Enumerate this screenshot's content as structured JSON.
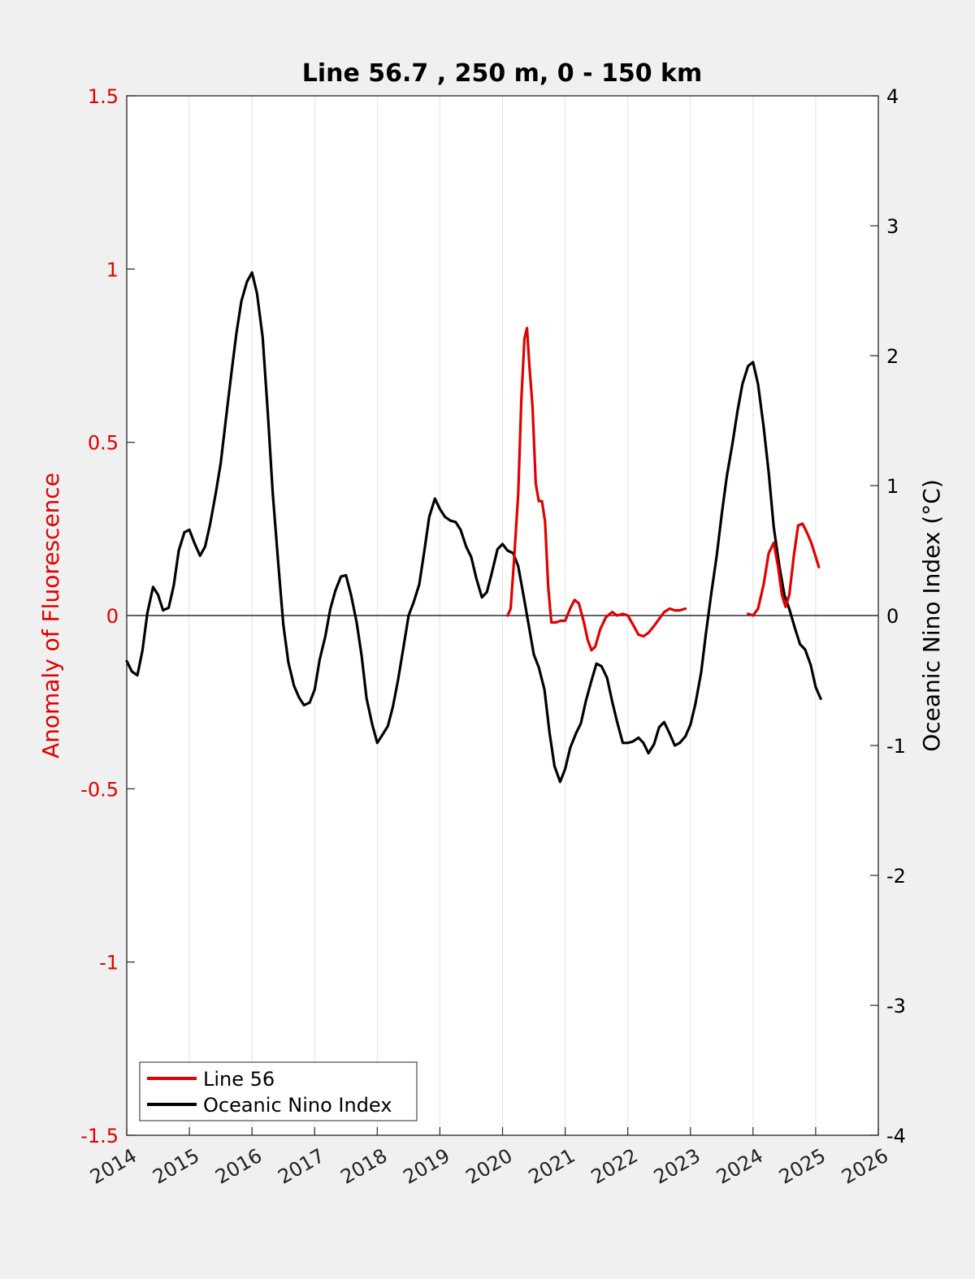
{
  "chart_data": {
    "type": "line",
    "title": "Line 56.7 , 250 m, 0 - 150 km",
    "xlim": [
      2014,
      2026
    ],
    "x_ticks": [
      2014,
      2015,
      2016,
      2017,
      2018,
      2019,
      2020,
      2021,
      2022,
      2023,
      2024,
      2025,
      2026
    ],
    "x_tick_labels": [
      "2014",
      "2015",
      "2016",
      "2017",
      "2018",
      "2019",
      "2020",
      "2021",
      "2022",
      "2023",
      "2024",
      "2025",
      "2026"
    ],
    "left_axis": {
      "label": "Anomaly of Fluorescence",
      "ylim": [
        -1.5,
        1.5
      ],
      "ticks": [
        -1.5,
        -1,
        -0.5,
        0,
        0.5,
        1,
        1.5
      ],
      "tick_labels": [
        "-1.5",
        "-1",
        "-0.5",
        "0",
        "0.5",
        "1",
        "1.5"
      ],
      "color": "#e00000"
    },
    "right_axis": {
      "label": "Oceanic Nino Index (°C)",
      "ylim": [
        -4,
        4
      ],
      "ticks": [
        -4,
        -3,
        -2,
        -1,
        0,
        1,
        2,
        3,
        4
      ],
      "tick_labels": [
        "-4",
        "-3",
        "-2",
        "-1",
        "0",
        "1",
        "2",
        "3",
        "4"
      ],
      "color": "#000000"
    },
    "grid": "vertical",
    "legend_position": "bottom-left",
    "series": [
      {
        "name": "Line 56",
        "axis": "left",
        "color": "#e00000",
        "segments": [
          [
            [
              2020.08,
              0.0
            ],
            [
              2020.13,
              0.02
            ],
            [
              2020.18,
              0.15
            ],
            [
              2020.25,
              0.35
            ],
            [
              2020.3,
              0.62
            ],
            [
              2020.35,
              0.8
            ],
            [
              2020.39,
              0.83
            ],
            [
              2020.43,
              0.72
            ],
            [
              2020.48,
              0.6
            ],
            [
              2020.53,
              0.38
            ],
            [
              2020.58,
              0.33
            ],
            [
              2020.63,
              0.33
            ],
            [
              2020.68,
              0.27
            ],
            [
              2020.73,
              0.08
            ],
            [
              2020.78,
              -0.02
            ],
            [
              2020.85,
              -0.02
            ],
            [
              2020.93,
              -0.015
            ],
            [
              2021.0,
              -0.015
            ],
            [
              2021.08,
              0.02
            ],
            [
              2021.15,
              0.045
            ],
            [
              2021.22,
              0.035
            ],
            [
              2021.3,
              -0.02
            ],
            [
              2021.36,
              -0.07
            ],
            [
              2021.42,
              -0.1
            ],
            [
              2021.48,
              -0.09
            ],
            [
              2021.56,
              -0.04
            ],
            [
              2021.65,
              -0.005
            ],
            [
              2021.75,
              0.01
            ],
            [
              2021.83,
              0.0
            ],
            [
              2021.92,
              0.005
            ],
            [
              2022.0,
              0.0
            ],
            [
              2022.08,
              -0.025
            ],
            [
              2022.17,
              -0.055
            ],
            [
              2022.25,
              -0.06
            ],
            [
              2022.33,
              -0.05
            ],
            [
              2022.42,
              -0.03
            ],
            [
              2022.5,
              -0.01
            ],
            [
              2022.58,
              0.01
            ],
            [
              2022.67,
              0.02
            ],
            [
              2022.75,
              0.015
            ],
            [
              2022.83,
              0.015
            ],
            [
              2022.92,
              0.02
            ]
          ],
          [
            [
              2023.92,
              0.005
            ],
            [
              2024.0,
              0.0
            ],
            [
              2024.08,
              0.02
            ],
            [
              2024.17,
              0.09
            ],
            [
              2024.25,
              0.18
            ],
            [
              2024.33,
              0.21
            ],
            [
              2024.4,
              0.14
            ],
            [
              2024.46,
              0.06
            ],
            [
              2024.52,
              0.025
            ],
            [
              2024.58,
              0.06
            ],
            [
              2024.65,
              0.17
            ],
            [
              2024.72,
              0.26
            ],
            [
              2024.79,
              0.265
            ],
            [
              2024.86,
              0.24
            ],
            [
              2024.93,
              0.21
            ],
            [
              2025.0,
              0.17
            ],
            [
              2025.05,
              0.14
            ]
          ]
        ]
      },
      {
        "name": "Oceanic Nino Index",
        "axis": "right",
        "color": "#000000",
        "segments": [
          [
            [
              2014.0,
              -0.35
            ],
            [
              2014.08,
              -0.43
            ],
            [
              2014.17,
              -0.46
            ],
            [
              2014.25,
              -0.27
            ],
            [
              2014.33,
              0.02
            ],
            [
              2014.42,
              0.22
            ],
            [
              2014.5,
              0.16
            ],
            [
              2014.58,
              0.04
            ],
            [
              2014.67,
              0.06
            ],
            [
              2014.75,
              0.23
            ],
            [
              2014.83,
              0.5
            ],
            [
              2014.92,
              0.64
            ],
            [
              2015.0,
              0.66
            ],
            [
              2015.08,
              0.56
            ],
            [
              2015.17,
              0.46
            ],
            [
              2015.25,
              0.53
            ],
            [
              2015.33,
              0.7
            ],
            [
              2015.42,
              0.94
            ],
            [
              2015.5,
              1.17
            ],
            [
              2015.58,
              1.5
            ],
            [
              2015.67,
              1.86
            ],
            [
              2015.75,
              2.17
            ],
            [
              2015.83,
              2.42
            ],
            [
              2015.92,
              2.57
            ],
            [
              2016.0,
              2.64
            ],
            [
              2016.08,
              2.48
            ],
            [
              2016.17,
              2.14
            ],
            [
              2016.25,
              1.58
            ],
            [
              2016.33,
              0.95
            ],
            [
              2016.42,
              0.4
            ],
            [
              2016.5,
              -0.07
            ],
            [
              2016.58,
              -0.36
            ],
            [
              2016.67,
              -0.54
            ],
            [
              2016.75,
              -0.63
            ],
            [
              2016.83,
              -0.69
            ],
            [
              2016.92,
              -0.67
            ],
            [
              2017.0,
              -0.57
            ],
            [
              2017.08,
              -0.34
            ],
            [
              2017.17,
              -0.16
            ],
            [
              2017.25,
              0.05
            ],
            [
              2017.33,
              0.19
            ],
            [
              2017.42,
              0.3
            ],
            [
              2017.5,
              0.31
            ],
            [
              2017.58,
              0.16
            ],
            [
              2017.67,
              -0.05
            ],
            [
              2017.75,
              -0.31
            ],
            [
              2017.83,
              -0.64
            ],
            [
              2017.92,
              -0.84
            ],
            [
              2018.0,
              -0.98
            ],
            [
              2018.08,
              -0.92
            ],
            [
              2018.17,
              -0.85
            ],
            [
              2018.25,
              -0.7
            ],
            [
              2018.33,
              -0.5
            ],
            [
              2018.42,
              -0.24
            ],
            [
              2018.5,
              0.0
            ],
            [
              2018.58,
              0.1
            ],
            [
              2018.67,
              0.24
            ],
            [
              2018.75,
              0.49
            ],
            [
              2018.83,
              0.76
            ],
            [
              2018.92,
              0.9
            ],
            [
              2019.0,
              0.82
            ],
            [
              2019.08,
              0.76
            ],
            [
              2019.17,
              0.73
            ],
            [
              2019.25,
              0.72
            ],
            [
              2019.33,
              0.66
            ],
            [
              2019.42,
              0.53
            ],
            [
              2019.5,
              0.45
            ],
            [
              2019.58,
              0.29
            ],
            [
              2019.67,
              0.14
            ],
            [
              2019.75,
              0.18
            ],
            [
              2019.83,
              0.33
            ],
            [
              2019.92,
              0.51
            ],
            [
              2020.0,
              0.55
            ],
            [
              2020.08,
              0.5
            ],
            [
              2020.17,
              0.48
            ],
            [
              2020.25,
              0.38
            ],
            [
              2020.33,
              0.17
            ],
            [
              2020.42,
              -0.08
            ],
            [
              2020.5,
              -0.3
            ],
            [
              2020.58,
              -0.4
            ],
            [
              2020.67,
              -0.57
            ],
            [
              2020.75,
              -0.9
            ],
            [
              2020.83,
              -1.16
            ],
            [
              2020.92,
              -1.28
            ],
            [
              2021.0,
              -1.18
            ],
            [
              2021.08,
              -1.02
            ],
            [
              2021.17,
              -0.91
            ],
            [
              2021.25,
              -0.83
            ],
            [
              2021.33,
              -0.66
            ],
            [
              2021.42,
              -0.5
            ],
            [
              2021.5,
              -0.37
            ],
            [
              2021.58,
              -0.39
            ],
            [
              2021.67,
              -0.48
            ],
            [
              2021.75,
              -0.66
            ],
            [
              2021.83,
              -0.82
            ],
            [
              2021.92,
              -0.98
            ],
            [
              2022.0,
              -0.98
            ],
            [
              2022.08,
              -0.97
            ],
            [
              2022.17,
              -0.94
            ],
            [
              2022.25,
              -0.98
            ],
            [
              2022.33,
              -1.06
            ],
            [
              2022.42,
              -0.99
            ],
            [
              2022.5,
              -0.86
            ],
            [
              2022.58,
              -0.82
            ],
            [
              2022.67,
              -0.91
            ],
            [
              2022.75,
              -1.0
            ],
            [
              2022.83,
              -0.98
            ],
            [
              2022.92,
              -0.93
            ],
            [
              2023.0,
              -0.84
            ],
            [
              2023.08,
              -0.68
            ],
            [
              2023.17,
              -0.44
            ],
            [
              2023.25,
              -0.13
            ],
            [
              2023.33,
              0.16
            ],
            [
              2023.42,
              0.46
            ],
            [
              2023.5,
              0.78
            ],
            [
              2023.58,
              1.07
            ],
            [
              2023.67,
              1.32
            ],
            [
              2023.75,
              1.57
            ],
            [
              2023.83,
              1.78
            ],
            [
              2023.92,
              1.92
            ],
            [
              2024.0,
              1.95
            ],
            [
              2024.08,
              1.78
            ],
            [
              2024.17,
              1.45
            ],
            [
              2024.25,
              1.1
            ],
            [
              2024.33,
              0.68
            ],
            [
              2024.42,
              0.38
            ],
            [
              2024.5,
              0.16
            ],
            [
              2024.58,
              0.05
            ],
            [
              2024.67,
              -0.1
            ],
            [
              2024.75,
              -0.22
            ],
            [
              2024.83,
              -0.26
            ],
            [
              2024.92,
              -0.38
            ],
            [
              2025.0,
              -0.55
            ],
            [
              2025.08,
              -0.64
            ]
          ]
        ]
      }
    ]
  }
}
